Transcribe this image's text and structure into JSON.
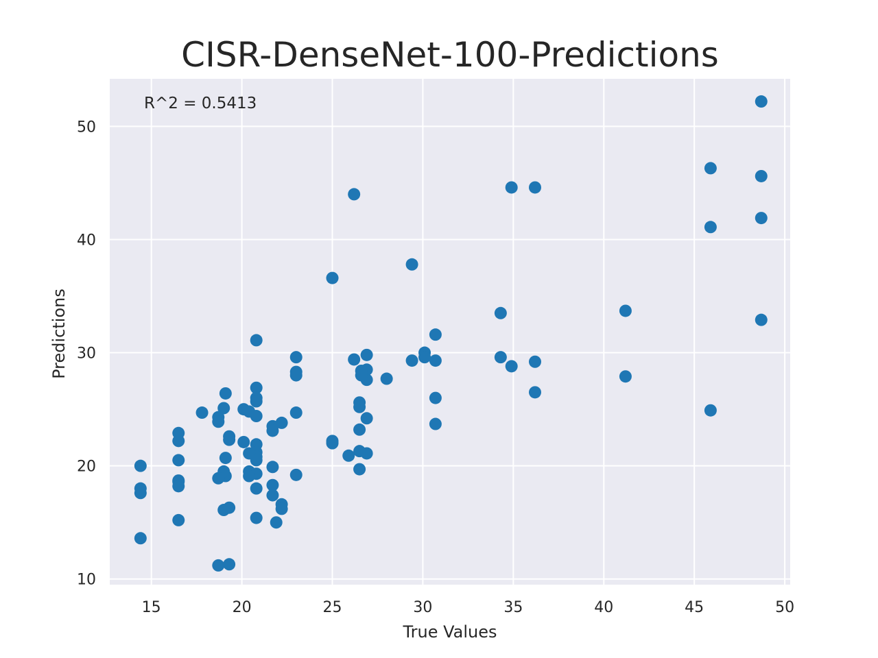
{
  "chart_data": {
    "type": "scatter",
    "title": "CISR-DenseNet-100-Predictions",
    "xlabel": "True Values",
    "ylabel": "Predictions",
    "annotation": "R^2 = 0.5413",
    "xlim": [
      12.7,
      50.3
    ],
    "ylim": [
      9.5,
      54.2
    ],
    "xticks": [
      15,
      20,
      25,
      30,
      35,
      40,
      45,
      50
    ],
    "yticks": [
      10,
      20,
      30,
      40,
      50
    ],
    "grid": true,
    "legend": "none",
    "colors": {
      "background": "#eaeaf2",
      "grid": "#ffffff",
      "point": "#1f77b4"
    },
    "points": [
      [
        48.7,
        52.2
      ],
      [
        48.7,
        45.6
      ],
      [
        48.7,
        41.9
      ],
      [
        48.7,
        32.9
      ],
      [
        45.9,
        46.3
      ],
      [
        45.9,
        41.1
      ],
      [
        45.9,
        24.9
      ],
      [
        41.2,
        33.7
      ],
      [
        41.2,
        27.9
      ],
      [
        36.2,
        44.6
      ],
      [
        36.2,
        29.2
      ],
      [
        36.2,
        26.5
      ],
      [
        34.9,
        44.6
      ],
      [
        34.9,
        28.8
      ],
      [
        34.3,
        33.5
      ],
      [
        34.3,
        29.6
      ],
      [
        30.7,
        31.6
      ],
      [
        30.7,
        29.3
      ],
      [
        30.7,
        26.0
      ],
      [
        30.7,
        23.7
      ],
      [
        30.1,
        30.0
      ],
      [
        30.1,
        29.6
      ],
      [
        29.4,
        37.8
      ],
      [
        29.4,
        29.3
      ],
      [
        28.0,
        27.7
      ],
      [
        26.9,
        29.8
      ],
      [
        26.9,
        28.5
      ],
      [
        26.9,
        27.6
      ],
      [
        26.9,
        24.2
      ],
      [
        26.9,
        21.1
      ],
      [
        26.6,
        28.4
      ],
      [
        26.6,
        28.0
      ],
      [
        26.5,
        25.6
      ],
      [
        26.5,
        25.2
      ],
      [
        26.5,
        23.2
      ],
      [
        26.5,
        21.3
      ],
      [
        26.5,
        19.7
      ],
      [
        26.2,
        44.0
      ],
      [
        26.2,
        29.4
      ],
      [
        25.9,
        20.9
      ],
      [
        25.0,
        36.6
      ],
      [
        25.0,
        22.2
      ],
      [
        25.0,
        22.0
      ],
      [
        23.0,
        29.6
      ],
      [
        23.0,
        28.3
      ],
      [
        23.0,
        28.0
      ],
      [
        23.0,
        24.7
      ],
      [
        23.0,
        19.2
      ],
      [
        22.2,
        23.8
      ],
      [
        22.2,
        16.6
      ],
      [
        22.2,
        16.2
      ],
      [
        21.9,
        15.0
      ],
      [
        21.7,
        23.5
      ],
      [
        21.7,
        23.1
      ],
      [
        21.7,
        19.9
      ],
      [
        21.7,
        18.3
      ],
      [
        21.7,
        17.4
      ],
      [
        20.8,
        31.1
      ],
      [
        20.8,
        26.9
      ],
      [
        20.8,
        26.0
      ],
      [
        20.8,
        25.7
      ],
      [
        20.8,
        24.4
      ],
      [
        20.8,
        21.9
      ],
      [
        20.8,
        21.2
      ],
      [
        20.8,
        20.8
      ],
      [
        20.8,
        20.5
      ],
      [
        20.8,
        19.3
      ],
      [
        20.8,
        18.0
      ],
      [
        20.8,
        15.4
      ],
      [
        20.4,
        24.8
      ],
      [
        20.4,
        21.1
      ],
      [
        20.4,
        19.5
      ],
      [
        20.4,
        19.1
      ],
      [
        20.1,
        25.0
      ],
      [
        20.1,
        22.1
      ],
      [
        19.3,
        22.6
      ],
      [
        19.3,
        22.3
      ],
      [
        19.3,
        16.3
      ],
      [
        19.3,
        11.3
      ],
      [
        19.1,
        26.4
      ],
      [
        19.1,
        20.7
      ],
      [
        19.1,
        19.1
      ],
      [
        19.0,
        25.1
      ],
      [
        19.0,
        19.5
      ],
      [
        19.0,
        16.1
      ],
      [
        18.7,
        24.3
      ],
      [
        18.7,
        23.9
      ],
      [
        18.7,
        18.9
      ],
      [
        18.7,
        11.2
      ],
      [
        17.8,
        24.7
      ],
      [
        16.5,
        22.9
      ],
      [
        16.5,
        22.2
      ],
      [
        16.5,
        20.5
      ],
      [
        16.5,
        18.7
      ],
      [
        16.5,
        18.6
      ],
      [
        16.5,
        18.2
      ],
      [
        16.5,
        15.2
      ],
      [
        14.4,
        20.0
      ],
      [
        14.4,
        18.0
      ],
      [
        14.4,
        17.6
      ],
      [
        14.4,
        13.6
      ]
    ]
  }
}
